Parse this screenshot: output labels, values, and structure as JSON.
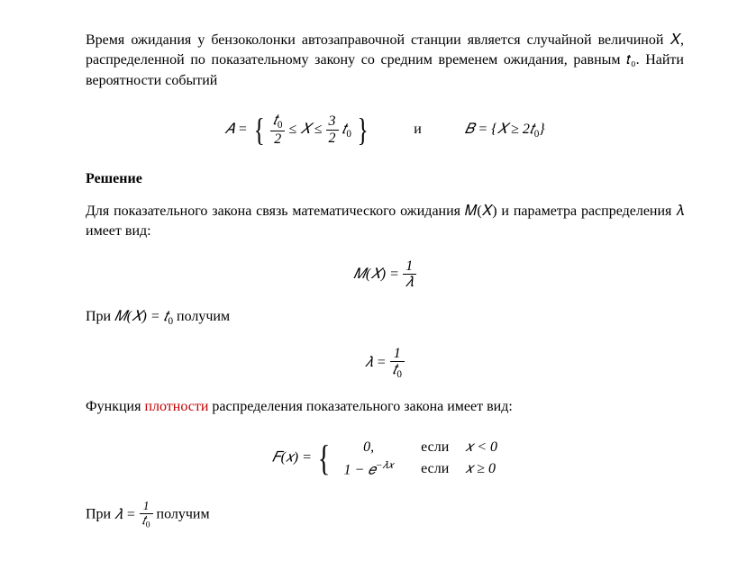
{
  "problem": {
    "text": "Время ожидания у бензоколонки автозаправочной станции является случайной величиной 𝑋, распределенной по показательному закону со средним временем ожидания, равным 𝑡₀. Найти вероятности событий"
  },
  "formula1": {
    "A_eq": "𝐴 =",
    "frac1_num": "𝑡",
    "frac1_num_sub": "0",
    "frac1_den": "2",
    "mid1": "≤ 𝑋 ≤",
    "frac2_num": "3",
    "frac2_den": "2",
    "t0": "𝑡",
    "t0_sub": "0",
    "and": "и",
    "B": "𝐵 = {𝑋 ≥ 2𝑡",
    "B_sub": "0",
    "B_close": "}"
  },
  "solution_heading": "Решение",
  "para1": "Для показательного закона связь математического ожидания 𝑀(𝑋) и параметра распределения 𝜆 имеет вид:",
  "formula2": {
    "lhs": "𝑀(𝑋) =",
    "num": "1",
    "den": "𝜆"
  },
  "para2_pre": "При ",
  "para2_math": "𝑀(𝑋) = 𝑡",
  "para2_sub": "0",
  "para2_post": " получим",
  "formula3": {
    "lhs": "𝜆 =",
    "num": "1",
    "den": "𝑡",
    "den_sub": "0"
  },
  "para3_pre": "Функция ",
  "para3_red": "плотности",
  "para3_post": " распределения показательного закона имеет вид:",
  "formula4": {
    "lhs": "𝐹(𝑥) =",
    "row1_val": "0,",
    "row1_if": "если",
    "row1_cond": "𝑥 < 0",
    "row2_val_pre": "1 − 𝑒",
    "row2_val_exp": "−𝜆𝑥",
    "row2_if": "если",
    "row2_cond": "𝑥 ≥ 0"
  },
  "para4_pre": "При ",
  "para4_lhs": "𝜆 =",
  "para4_num": "1",
  "para4_den": "𝑡",
  "para4_den_sub": "0",
  "para4_post": " получим"
}
